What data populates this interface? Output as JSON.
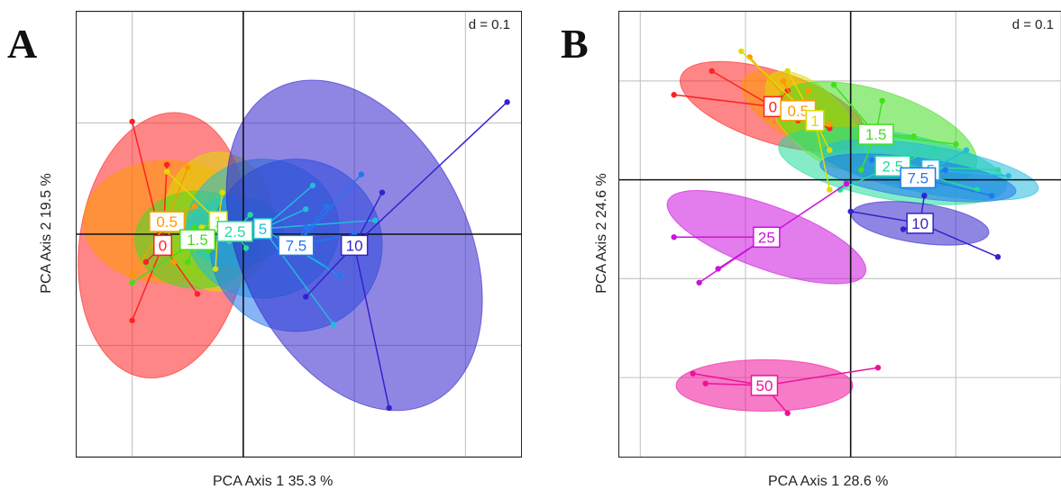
{
  "panels": [
    {
      "letter": "A",
      "xlabel": "PCA Axis 1 35.3 %",
      "ylabel": "PCA Axis 2 19.5 %",
      "d_label": "d = 0.1"
    },
    {
      "letter": "B",
      "xlabel": "PCA Axis 1 28.6 %",
      "ylabel": "PCA Axis 2 24.6 %",
      "d_label": "d = 0.1"
    }
  ],
  "colors": {
    "0": "#ff2222",
    "0.5": "#ff9900",
    "1": "#dddd00",
    "1.5": "#44dd22",
    "2.5": "#22dd99",
    "5": "#22bbdd",
    "7.5": "#2277ee",
    "10": "#3322cc",
    "25": "#cc11dd",
    "50": "#ee1199"
  },
  "chart_data": [
    {
      "type": "scatter",
      "title": "",
      "xlabel": "PCA Axis 1 35.3 %",
      "ylabel": "PCA Axis 2 19.5 %",
      "xlim": [
        -1.2,
        2.0
      ],
      "ylim": [
        -1.6,
        1.6
      ],
      "grid": true,
      "grid_spacing": 0.8,
      "annotation": "d = 0.1",
      "groups": [
        {
          "name": "0",
          "centroid": [
            -0.58,
            -0.08
          ],
          "ellipse": {
            "rx": 0.6,
            "ry": 0.96,
            "angle": -8
          },
          "points": [
            [
              -0.8,
              0.81
            ],
            [
              -0.8,
              -0.62
            ],
            [
              -0.65,
              0.1
            ],
            [
              -0.33,
              -0.43
            ],
            [
              -0.55,
              0.5
            ],
            [
              -0.7,
              -0.2
            ]
          ]
        },
        {
          "name": "0.5",
          "centroid": [
            -0.55,
            0.09
          ],
          "ellipse": {
            "rx": 0.6,
            "ry": 0.44,
            "angle": 0
          },
          "points": [
            [
              -0.4,
              0.48
            ],
            [
              -0.8,
              -0.3
            ],
            [
              -0.62,
              0.05
            ],
            [
              -0.35,
              0.2
            ],
            [
              -0.5,
              -0.2
            ]
          ]
        },
        {
          "name": "1",
          "centroid": [
            -0.18,
            0.09
          ],
          "ellipse": {
            "rx": 0.4,
            "ry": 0.5,
            "angle": 0
          },
          "points": [
            [
              -0.55,
              0.45
            ],
            [
              -0.3,
              0.05
            ],
            [
              -0.2,
              -0.25
            ],
            [
              -0.35,
              -0.1
            ],
            [
              -0.15,
              0.3
            ]
          ]
        },
        {
          "name": "1.5",
          "centroid": [
            -0.33,
            -0.04
          ],
          "ellipse": {
            "rx": 0.45,
            "ry": 0.35,
            "angle": 0
          },
          "points": [
            [
              -0.8,
              -0.35
            ],
            [
              -0.25,
              -0.12
            ],
            [
              -0.35,
              0.05
            ],
            [
              -0.2,
              0.15
            ],
            [
              -0.4,
              -0.2
            ]
          ]
        },
        {
          "name": "2.5",
          "centroid": [
            -0.06,
            0.02
          ],
          "ellipse": {
            "rx": 0.35,
            "ry": 0.25,
            "angle": 0
          },
          "points": [
            [
              -0.2,
              0.08
            ],
            [
              0.05,
              0.14
            ],
            [
              -0.1,
              -0.05
            ],
            [
              0.02,
              -0.1
            ]
          ]
        },
        {
          "name": "5",
          "centroid": [
            0.14,
            0.04
          ],
          "ellipse": {
            "rx": 0.55,
            "ry": 0.5,
            "angle": 0
          },
          "points": [
            [
              0.5,
              0.35
            ],
            [
              0.7,
              -0.3
            ],
            [
              0.45,
              0.18
            ],
            [
              0.95,
              0.1
            ],
            [
              0.65,
              -0.65
            ]
          ]
        },
        {
          "name": "7.5",
          "centroid": [
            0.38,
            -0.08
          ],
          "ellipse": {
            "rx": 0.62,
            "ry": 0.62,
            "angle": 0
          },
          "points": [
            [
              0.6,
              0.2
            ],
            [
              0.85,
              0.43
            ],
            [
              0.7,
              -0.3
            ],
            [
              0.45,
              0.05
            ],
            [
              0.8,
              0.0
            ]
          ]
        },
        {
          "name": "10",
          "centroid": [
            0.8,
            -0.08
          ],
          "ellipse": {
            "rx": 0.82,
            "ry": 1.26,
            "angle": 26
          },
          "points": [
            [
              1.9,
              0.95
            ],
            [
              1.0,
              0.3
            ],
            [
              0.45,
              -0.45
            ],
            [
              1.05,
              -1.25
            ],
            [
              0.8,
              -0.05
            ]
          ]
        }
      ]
    },
    {
      "type": "scatter",
      "title": "",
      "xlabel": "PCA Axis 1 28.6 %",
      "ylabel": "PCA Axis 2 24.6 %",
      "xlim": [
        -1.1,
        1.0
      ],
      "ylim": [
        -1.4,
        0.85
      ],
      "grid": true,
      "grid_spacing": 0.5,
      "annotation": "d = 0.1",
      "groups": [
        {
          "name": "0",
          "centroid": [
            -0.37,
            0.37
          ],
          "ellipse": {
            "rx": 0.46,
            "ry": 0.18,
            "angle": -18
          },
          "points": [
            [
              -0.84,
              0.43
            ],
            [
              -0.66,
              0.55
            ],
            [
              -0.25,
              0.3
            ],
            [
              -0.1,
              0.26
            ],
            [
              -0.3,
              0.45
            ]
          ]
        },
        {
          "name": "0.5",
          "centroid": [
            -0.25,
            0.35
          ],
          "ellipse": {
            "rx": 0.3,
            "ry": 0.14,
            "angle": -30
          },
          "points": [
            [
              -0.48,
              0.62
            ],
            [
              -0.32,
              0.5
            ],
            [
              -0.1,
              0.28
            ],
            [
              -0.2,
              0.45
            ]
          ]
        },
        {
          "name": "1",
          "centroid": [
            -0.17,
            0.3
          ],
          "ellipse": {
            "rx": 0.3,
            "ry": 0.15,
            "angle": -45
          },
          "points": [
            [
              -0.52,
              0.65
            ],
            [
              -0.3,
              0.55
            ],
            [
              -0.1,
              0.15
            ],
            [
              -0.1,
              -0.05
            ]
          ]
        },
        {
          "name": "1.5",
          "centroid": [
            0.12,
            0.23
          ],
          "ellipse": {
            "rx": 0.5,
            "ry": 0.22,
            "angle": -18
          },
          "points": [
            [
              -0.08,
              0.48
            ],
            [
              0.3,
              0.22
            ],
            [
              0.5,
              0.18
            ],
            [
              0.05,
              0.05
            ],
            [
              0.15,
              0.4
            ]
          ]
        },
        {
          "name": "2.5",
          "centroid": [
            0.2,
            0.07
          ],
          "ellipse": {
            "rx": 0.55,
            "ry": 0.17,
            "angle": -10
          },
          "points": [
            [
              -0.05,
              -0.05
            ],
            [
              0.7,
              0.05
            ],
            [
              0.4,
              0.15
            ],
            [
              0.6,
              -0.05
            ]
          ]
        },
        {
          "name": "5",
          "centroid": [
            0.38,
            0.05
          ],
          "ellipse": {
            "rx": 0.52,
            "ry": 0.12,
            "angle": -10
          },
          "points": [
            [
              0.55,
              0.15
            ],
            [
              0.75,
              0.02
            ],
            [
              0.2,
              0.1
            ]
          ]
        },
        {
          "name": "7.5",
          "centroid": [
            0.32,
            0.01
          ],
          "ellipse": {
            "rx": 0.47,
            "ry": 0.1,
            "angle": -8
          },
          "points": [
            [
              0.1,
              0.1
            ],
            [
              0.45,
              0.05
            ],
            [
              0.67,
              -0.08
            ],
            [
              0.3,
              -0.02
            ]
          ]
        },
        {
          "name": "10",
          "centroid": [
            0.33,
            -0.22
          ],
          "ellipse": {
            "rx": 0.33,
            "ry": 0.1,
            "angle": -8
          },
          "points": [
            [
              0.35,
              -0.08
            ],
            [
              0.7,
              -0.39
            ],
            [
              0.25,
              -0.25
            ],
            [
              0.0,
              -0.16
            ]
          ]
        },
        {
          "name": "25",
          "centroid": [
            -0.4,
            -0.29
          ],
          "ellipse": {
            "rx": 0.5,
            "ry": 0.16,
            "angle": -20
          },
          "points": [
            [
              -0.84,
              -0.29
            ],
            [
              -0.72,
              -0.52
            ],
            [
              -0.63,
              -0.45
            ],
            [
              -0.02,
              -0.02
            ]
          ]
        },
        {
          "name": "50",
          "centroid": [
            -0.41,
            -1.04
          ],
          "ellipse": {
            "rx": 0.42,
            "ry": 0.13,
            "angle": 0
          },
          "points": [
            [
              -0.75,
              -0.98
            ],
            [
              -0.69,
              -1.03
            ],
            [
              -0.3,
              -1.18
            ],
            [
              0.13,
              -0.95
            ]
          ]
        }
      ]
    }
  ]
}
